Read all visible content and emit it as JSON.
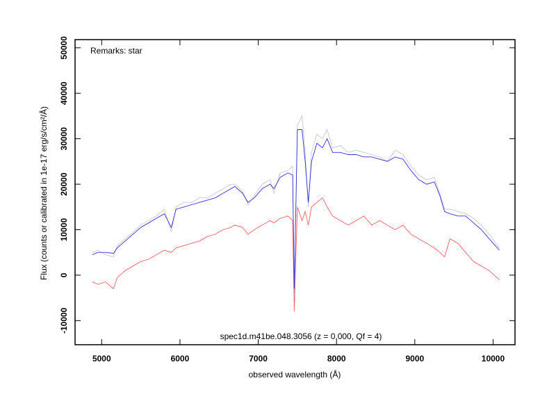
{
  "chart_data": {
    "type": "line",
    "title": "spec1d.m41be.048.3056 (z = 0.000, Qf = 4)",
    "annotation": "Remarks: star",
    "xlabel": "observed wavelength (Å)",
    "ylabel": "Flux (counts or calibrated in 1e-17 erg/s/cm²/Å)",
    "x": [
      4880,
      4950,
      5050,
      5150,
      5200,
      5300,
      5400,
      5500,
      5600,
      5700,
      5800,
      5890,
      5950,
      6050,
      6150,
      6250,
      6350,
      6450,
      6550,
      6650,
      6700,
      6800,
      6870,
      6950,
      7050,
      7150,
      7200,
      7280,
      7380,
      7440,
      7460,
      7500,
      7560,
      7600,
      7640,
      7680,
      7750,
      7820,
      7880,
      7950,
      8050,
      8150,
      8250,
      8350,
      8450,
      8550,
      8650,
      8750,
      8850,
      8950,
      9050,
      9150,
      9250,
      9320,
      9380,
      9450,
      9550,
      9650,
      9750,
      9850,
      9950,
      10080
    ],
    "series": [
      {
        "color": "#c8c8c8",
        "values": [
          5000,
          5500,
          4500,
          4000,
          6500,
          8000,
          9500,
          11000,
          12000,
          13000,
          14500,
          9500,
          15000,
          16000,
          16000,
          17000,
          17000,
          18000,
          19000,
          20000,
          20000,
          18500,
          15500,
          17500,
          20000,
          21000,
          18000,
          22500,
          23000,
          24000,
          -4000,
          33000,
          35000,
          27000,
          15000,
          27000,
          31000,
          30000,
          32000,
          28000,
          28500,
          27000,
          27500,
          27000,
          26500,
          26000,
          25000,
          27500,
          26500,
          24000,
          22000,
          21000,
          21500,
          18000,
          14500,
          14500,
          14000,
          13500,
          12500,
          11000,
          9000,
          6000
        ]
      },
      {
        "color": "#f06060",
        "values": [
          -1500,
          -2000,
          -1500,
          -3000,
          -500,
          1000,
          2000,
          3000,
          3500,
          4500,
          5500,
          5000,
          6000,
          6500,
          7000,
          7500,
          8500,
          9000,
          10000,
          10500,
          11000,
          10500,
          9000,
          10000,
          11000,
          12000,
          11500,
          12500,
          13000,
          12000,
          -8000,
          15000,
          12000,
          14000,
          11000,
          15000,
          16000,
          17000,
          15000,
          13000,
          12000,
          11000,
          12000,
          13000,
          11000,
          12000,
          11000,
          10000,
          11000,
          9000,
          8000,
          7000,
          6000,
          5000,
          4000,
          8000,
          7000,
          5000,
          3000,
          2000,
          1000,
          -1000
        ]
      },
      {
        "color": "#3030e0",
        "values": [
          4500,
          5000,
          5000,
          4800,
          6000,
          7500,
          9000,
          10500,
          11500,
          12500,
          13500,
          10500,
          14500,
          15000,
          15500,
          16000,
          16500,
          17000,
          18000,
          19000,
          19500,
          18000,
          16000,
          17000,
          19000,
          20000,
          19000,
          21500,
          22500,
          22000,
          -3000,
          32000,
          32000,
          25000,
          16000,
          25000,
          29000,
          28000,
          30000,
          27000,
          27000,
          26500,
          26500,
          26000,
          26000,
          25500,
          25000,
          26000,
          25500,
          23000,
          21000,
          20000,
          20500,
          17500,
          14000,
          13500,
          13000,
          13000,
          11500,
          10000,
          8000,
          5500
        ]
      }
    ],
    "xlim": [
      4660,
      10280
    ],
    "xticks": [
      5000,
      6000,
      7000,
      8000,
      9000,
      10000
    ],
    "ylim": [
      -15300,
      51800
    ],
    "yticks": [
      -10000,
      0,
      10000,
      20000,
      30000,
      40000,
      50000
    ]
  }
}
